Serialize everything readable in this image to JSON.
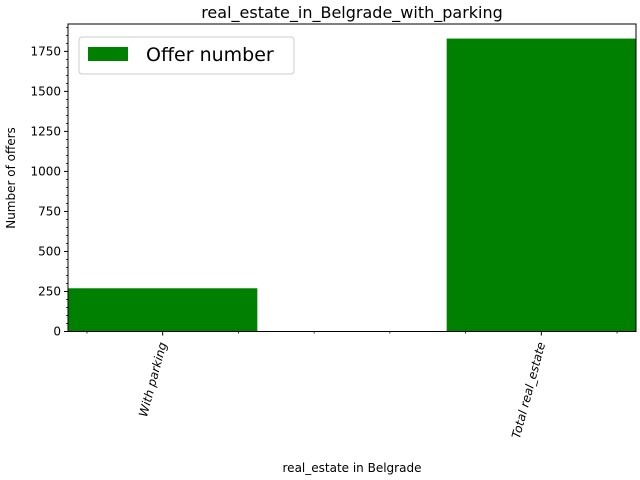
{
  "chart_data": {
    "type": "bar",
    "title": "real_estate_in_Belgrade_with_parking",
    "xlabel": "real_estate in Belgrade",
    "ylabel": "Number of offers",
    "categories": [
      "With parking",
      "Total real_estate"
    ],
    "series": [
      {
        "name": "Offer number",
        "values": [
          270,
          1830
        ]
      }
    ],
    "ylim": [
      0,
      1921
    ],
    "yticks_major": [
      0,
      250,
      500,
      750,
      1000,
      1250,
      1500,
      1750
    ],
    "ytick_labels": [
      "0",
      "250",
      "500",
      "750",
      "1000",
      "1250",
      "1500",
      "1750"
    ],
    "ytick_minor_step": 50,
    "bar_color": "#008000",
    "legend_position": "upper-left",
    "grid": false
  }
}
